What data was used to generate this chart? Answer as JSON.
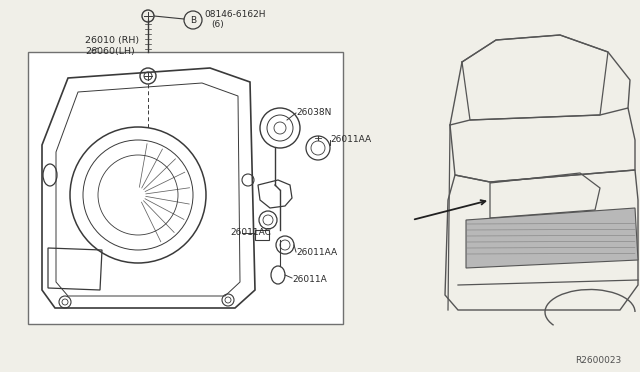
{
  "bg_color": "#f0efe8",
  "line_color": "#3a3a3a",
  "box_bg": "#ffffff",
  "box_edge": "#888888",
  "text_color": "#2a2a2a",
  "ref_code": "R2600023",
  "label_assembly1": "26010 (RH)",
  "label_assembly2": "26060(LH)",
  "label_bolt": "08146-6162H",
  "label_bolt2": "(6)",
  "label_b": "B",
  "label_26038N": "26038N",
  "label_26011AA_1": "26011AA",
  "label_26011AC": "26011AC",
  "label_26011AA_2": "26011AA",
  "label_26011A": "26011A"
}
